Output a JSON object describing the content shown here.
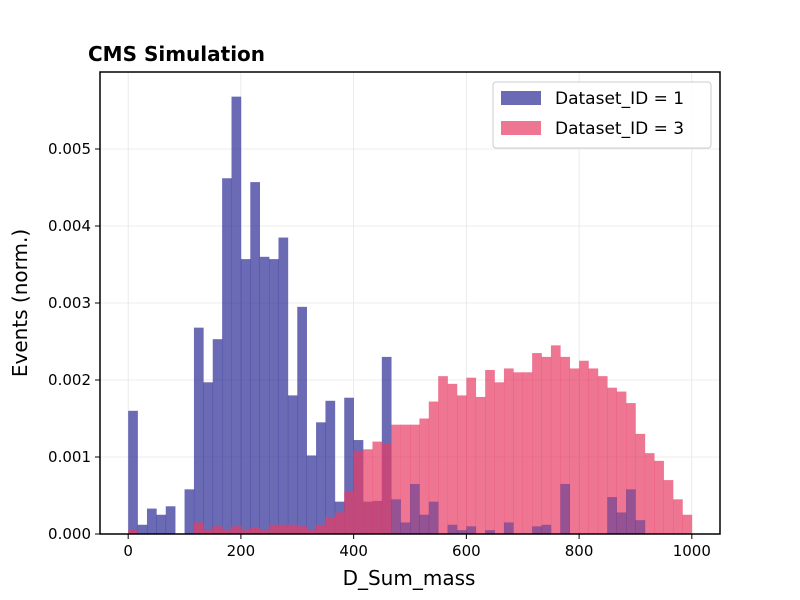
{
  "chart_data": {
    "type": "bar",
    "title": "CMS Simulation",
    "xlabel": "D_Sum_mass",
    "ylabel": "Events (norm.)",
    "xlim": [
      -50,
      1050
    ],
    "ylim": [
      0,
      0.006
    ],
    "xticks": [
      0,
      200,
      400,
      600,
      800,
      1000
    ],
    "xtick_labels": [
      "0",
      "200",
      "400",
      "600",
      "800",
      "1000"
    ],
    "yticks": [
      0,
      0.001,
      0.002,
      0.003,
      0.004,
      0.005
    ],
    "ytick_labels": [
      "0.000",
      "0.001",
      "0.002",
      "0.003",
      "0.004",
      "0.005"
    ],
    "grid": true,
    "legend_position": "top-right",
    "bin_edges_start": 0,
    "bin_width": 16.667,
    "series": [
      {
        "name": "Dataset_ID = 1",
        "color": "#2b2b96",
        "opacity": 0.7,
        "values": [
          0.0016,
          0.00012,
          0.00033,
          0.00025,
          0.00036,
          0,
          0.00058,
          0.00268,
          0.00197,
          0.00253,
          0.00462,
          0.00568,
          0.00357,
          0.00457,
          0.0036,
          0.00357,
          0.00385,
          0.0018,
          0.00295,
          0.00102,
          0.00145,
          0.00173,
          0.00042,
          0.00177,
          0.00122,
          0.00042,
          0.00043,
          0.0023,
          0,
          0,
          0,
          0,
          0,
          0,
          0,
          0,
          0,
          0,
          0,
          0,
          0,
          0,
          0,
          0,
          0,
          0,
          0,
          0,
          0,
          0,
          0,
          0,
          0,
          0,
          0,
          0,
          0,
          0,
          0,
          0
        ]
      },
      {
        "name": "Dataset_ID = 3",
        "color": "#e83c64",
        "opacity": 0.7,
        "values": [
          5e-05,
          0,
          0,
          0,
          0,
          0,
          0,
          0.00015,
          5e-05,
          0.0001,
          5e-05,
          0.0001,
          5e-05,
          8e-05,
          5e-05,
          0.00012,
          0.00012,
          0.00012,
          0.0001,
          5e-05,
          0.00012,
          0.00022,
          0.00028,
          0.00055,
          0.00108,
          0.0011,
          0.0012,
          0.00118,
          0.00142,
          0.00142,
          0.00142,
          0.0015,
          0.00172,
          0.00205,
          0.00195,
          0.0018,
          0.00203,
          0.00178,
          0.00213,
          0.00197,
          0.00215,
          0.0021,
          0.0021,
          0.00235,
          0.0023,
          0.00245,
          0.0023,
          0.00215,
          0.00225,
          0.00215,
          0.00205,
          0.0019,
          0.00185,
          0.0017,
          0.0013,
          0.00105,
          0.00095,
          0.0007,
          0.00045,
          0.00025
        ]
      },
      {
        "name": "",
        "overlap_only": true,
        "values": [
          5e-05,
          0,
          0,
          0,
          0,
          0,
          0,
          0.00015,
          5e-05,
          0.0001,
          5e-05,
          0.0001,
          5e-05,
          8e-05,
          5e-05,
          0.00012,
          0.00012,
          0.00012,
          0.0001,
          5e-05,
          0.00012,
          0.00022,
          0.00028,
          0.00055,
          0.00108,
          0.00042,
          0.00043,
          0.00118,
          0,
          0,
          0,
          0,
          0,
          0,
          0,
          0,
          0,
          0,
          0,
          0,
          0,
          0,
          0,
          0,
          0,
          0,
          0,
          0,
          0,
          0,
          0,
          0,
          0,
          0,
          0,
          0,
          0,
          0,
          0,
          0
        ]
      }
    ],
    "extra_overlap_bars": [
      {
        "x": 1000,
        "v": 0
      }
    ],
    "dataset3_secondary": [
      {
        "bin": 28,
        "v": 0.00045
      },
      {
        "bin": 29,
        "v": 0.00015
      },
      {
        "bin": 30,
        "v": 0.00065
      },
      {
        "bin": 31,
        "v": 0.00025
      },
      {
        "bin": 32,
        "v": 0.00042
      },
      {
        "bin": 34,
        "v": 0.00012
      },
      {
        "bin": 35,
        "v": 5e-05
      },
      {
        "bin": 36,
        "v": 0.0001
      },
      {
        "bin": 38,
        "v": 5e-05
      },
      {
        "bin": 40,
        "v": 0.00015
      },
      {
        "bin": 43,
        "v": 0.0001
      },
      {
        "bin": 44,
        "v": 0.00012
      },
      {
        "bin": 46,
        "v": 0.00065
      },
      {
        "bin": 51,
        "v": 0.00048
      },
      {
        "bin": 52,
        "v": 0.00028
      },
      {
        "bin": 53,
        "v": 0.00058
      },
      {
        "bin": 54,
        "v": 0.00018
      }
    ]
  }
}
